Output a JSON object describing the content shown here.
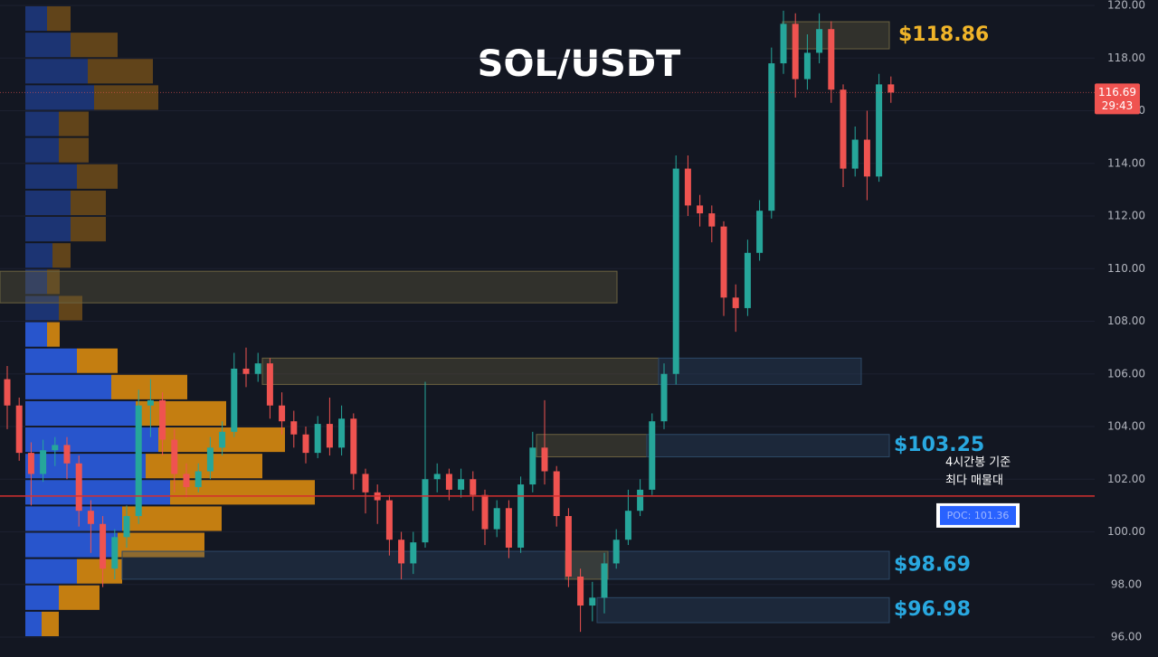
{
  "chart_data": {
    "type": "candlestick",
    "title": "SOL/USDT",
    "open": [
      105.8,
      104.8,
      103.0,
      102.2,
      103.1,
      103.3,
      102.6,
      100.8,
      100.3,
      98.6,
      99.8,
      100.6,
      104.8,
      105.0,
      103.5,
      102.2,
      101.7,
      102.3,
      103.2,
      103.8,
      106.2,
      106.0,
      106.4,
      104.8,
      104.2,
      103.7,
      103.0,
      104.1,
      103.2,
      104.3,
      102.2,
      101.5,
      101.2,
      99.7,
      98.8,
      99.6,
      102.0,
      102.2,
      101.6,
      102.0,
      101.4,
      100.1,
      100.9,
      99.4,
      101.8,
      103.2,
      102.3,
      100.6,
      98.3,
      97.2,
      97.5,
      98.8,
      99.7,
      100.8,
      101.6,
      104.2,
      106.0,
      113.8,
      112.4,
      112.1,
      111.6,
      108.9,
      108.5,
      110.6,
      112.2,
      117.8,
      119.3,
      117.2,
      118.2,
      119.1,
      116.8,
      113.8,
      114.9,
      113.5,
      117.0
    ],
    "high": [
      106.3,
      105.1,
      103.4,
      103.5,
      103.6,
      103.6,
      102.9,
      101.2,
      100.6,
      100.1,
      101.0,
      105.4,
      105.8,
      105.3,
      103.9,
      102.6,
      102.6,
      103.6,
      104.2,
      106.8,
      107.0,
      106.8,
      106.6,
      105.3,
      104.6,
      104.0,
      104.4,
      105.1,
      104.8,
      104.5,
      102.4,
      101.8,
      101.4,
      100.0,
      100.0,
      105.7,
      102.6,
      102.4,
      102.4,
      102.3,
      101.6,
      101.2,
      101.2,
      102.1,
      103.8,
      105.0,
      102.5,
      100.9,
      98.6,
      98.1,
      99.2,
      100.1,
      101.6,
      102.0,
      104.5,
      106.4,
      114.3,
      114.3,
      112.8,
      112.4,
      111.8,
      109.4,
      111.1,
      112.6,
      118.4,
      119.8,
      119.7,
      118.9,
      119.7,
      119.4,
      117.0,
      115.4,
      116.0,
      117.4,
      117.3
    ],
    "low": [
      103.9,
      102.7,
      101.0,
      101.9,
      102.5,
      102.0,
      100.2,
      99.2,
      97.9,
      98.2,
      99.4,
      100.3,
      103.6,
      102.9,
      101.5,
      101.3,
      101.5,
      102.0,
      102.9,
      103.6,
      105.5,
      105.7,
      104.3,
      103.7,
      103.2,
      102.6,
      102.8,
      102.9,
      102.9,
      101.6,
      100.7,
      100.3,
      99.1,
      98.2,
      98.4,
      99.4,
      101.5,
      101.2,
      101.3,
      100.8,
      99.5,
      99.8,
      99.0,
      99.2,
      101.5,
      101.8,
      100.2,
      97.9,
      96.2,
      96.6,
      96.9,
      98.6,
      99.5,
      100.6,
      101.4,
      103.9,
      105.6,
      112.0,
      111.6,
      111.0,
      108.2,
      107.6,
      108.2,
      110.3,
      111.9,
      117.4,
      116.5,
      116.8,
      117.8,
      116.3,
      113.1,
      113.5,
      112.6,
      113.3,
      116.3
    ],
    "close": [
      104.8,
      103.0,
      102.2,
      103.1,
      103.3,
      102.6,
      100.8,
      100.3,
      98.6,
      99.8,
      100.6,
      104.8,
      105.0,
      103.5,
      102.2,
      101.7,
      102.3,
      103.2,
      103.8,
      106.2,
      106.0,
      106.4,
      104.8,
      104.2,
      103.7,
      103.0,
      104.1,
      103.2,
      104.3,
      102.2,
      101.5,
      101.2,
      99.7,
      98.8,
      99.6,
      102.0,
      102.2,
      101.6,
      102.0,
      101.4,
      100.1,
      100.9,
      99.4,
      101.8,
      103.2,
      102.3,
      100.6,
      98.3,
      97.2,
      97.5,
      98.8,
      99.7,
      100.8,
      101.6,
      104.2,
      106.0,
      113.8,
      112.4,
      112.1,
      111.6,
      108.9,
      108.5,
      110.6,
      112.2,
      117.8,
      119.3,
      117.2,
      118.2,
      119.1,
      116.8,
      113.8,
      114.9,
      113.5,
      117.0,
      116.69
    ],
    "ylim": [
      96,
      120
    ],
    "yticks": [
      {
        "value": 96,
        "label": "96.00"
      },
      {
        "value": 98,
        "label": "98.00"
      },
      {
        "value": 100,
        "label": "100.00"
      },
      {
        "value": 102,
        "label": "102.00"
      },
      {
        "value": 104,
        "label": "104.00"
      },
      {
        "value": 106,
        "label": "106.00"
      },
      {
        "value": 108,
        "label": "108.00"
      },
      {
        "value": 110,
        "label": "110.00"
      },
      {
        "value": 112,
        "label": "112.00"
      },
      {
        "value": 114,
        "label": "114.00"
      },
      {
        "value": 116,
        "label": "116.00"
      },
      {
        "value": 118,
        "label": "118.00"
      },
      {
        "value": 120,
        "label": "120.00"
      }
    ],
    "grid": true,
    "colors": {
      "up": "#26a69a",
      "down": "#ef5350",
      "buy": "#2958d6",
      "sell": "#d8890f",
      "supply": "#6b6240",
      "demand": "#2d4866",
      "poc": "#d32f2f"
    },
    "volume_profile": {
      "bins": [
        96,
        97,
        98,
        99,
        100,
        101,
        102,
        103,
        104,
        105,
        106,
        107,
        108,
        109,
        110,
        111,
        112,
        113,
        114,
        115,
        116,
        117,
        118,
        119,
        120
      ],
      "buy": [
        18,
        37,
        57,
        102,
        107,
        160,
        133,
        147,
        122,
        95,
        57,
        24,
        37,
        24,
        30,
        50,
        50,
        57,
        37,
        37,
        76,
        69,
        50,
        24
      ],
      "sell": [
        19,
        45,
        50,
        96,
        110,
        160,
        129,
        140,
        100,
        84,
        45,
        14,
        26,
        14,
        20,
        39,
        39,
        45,
        33,
        33,
        71,
        72,
        52,
        26
      ],
      "xlim": [
        0,
        330
      ]
    },
    "zones": [
      {
        "low": 108.7,
        "high": 109.9
      },
      {
        "low": 105.6,
        "high": 106.6
      },
      {
        "low": 102.85,
        "high": 103.7,
        "label": "$103.25"
      },
      {
        "low": 98.2,
        "high": 99.26,
        "label": "$98.69"
      },
      {
        "low": 96.55,
        "high": 97.5,
        "label": "$96.98"
      },
      {
        "low": 118.35,
        "high": 119.38,
        "label": "$118.86"
      }
    ],
    "poc": {
      "value": 101.36,
      "label": "POC: 101.36",
      "note": [
        "4시간봉 기준",
        "최다 매물대"
      ]
    },
    "last_price": {
      "value": 116.69,
      "label": "116.69",
      "countdown": "29:43"
    }
  }
}
